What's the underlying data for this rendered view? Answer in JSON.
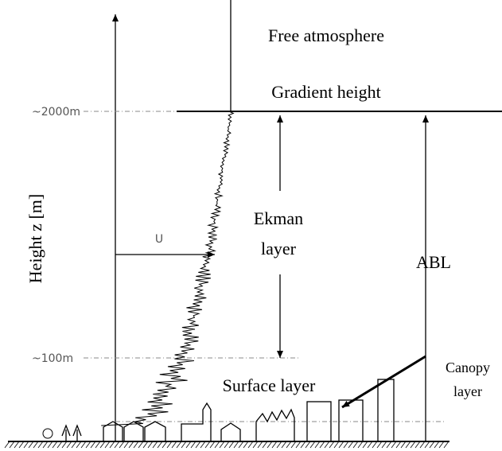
{
  "labels": {
    "free_atmosphere": "Free atmosphere",
    "gradient_height": "Gradient height",
    "height_2000": "~2000m",
    "height_100": "~100m",
    "ekman_layer": [
      "Ekman",
      "layer"
    ],
    "abl": "ABL",
    "wind_speed": "U",
    "y_axis": "Height z [m]",
    "surface_layer": "Surface layer",
    "canopy_layer": [
      "Canopy",
      "layer"
    ]
  }
}
